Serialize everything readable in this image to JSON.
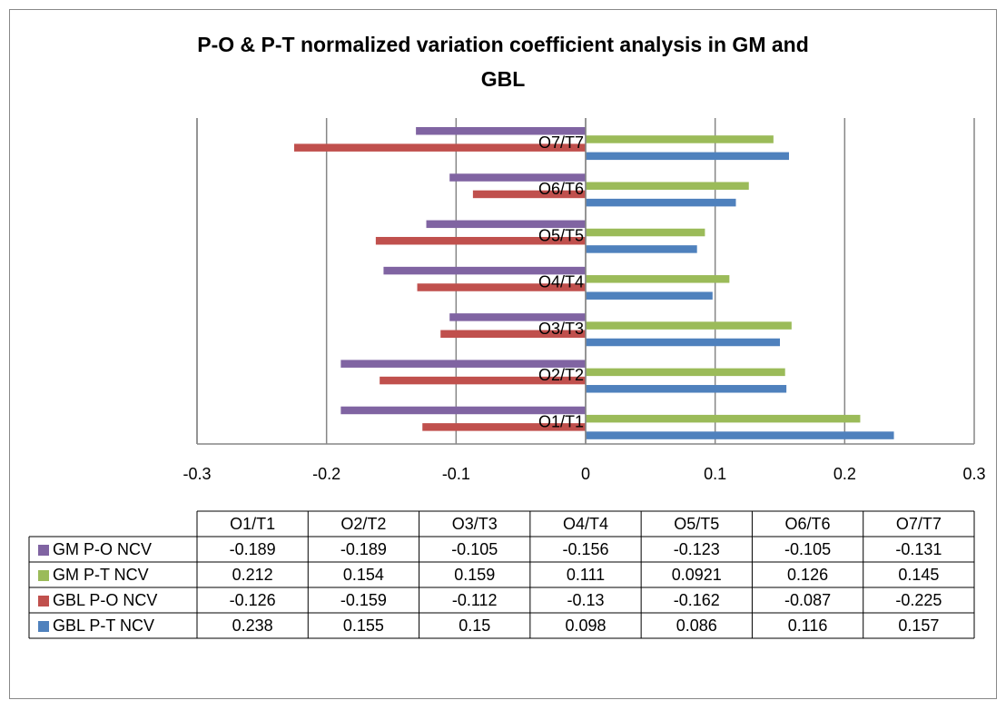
{
  "chart_data": {
    "type": "barh",
    "title": "P-O & P-T normalized variation coefficient analysis in GM and GBL",
    "categories": [
      "O1/T1",
      "O2/T2",
      "O3/T3",
      "O4/T4",
      "O5/T5",
      "O6/T6",
      "O7/T7"
    ],
    "series": [
      {
        "name": "GM P-O NCV",
        "color": "#8064a2",
        "values": [
          -0.189,
          -0.189,
          -0.105,
          -0.156,
          -0.123,
          -0.105,
          -0.131
        ]
      },
      {
        "name": "GM P-T NCV",
        "color": "#9bbb59",
        "values": [
          0.212,
          0.154,
          0.159,
          0.111,
          0.0921,
          0.126,
          0.145
        ]
      },
      {
        "name": "GBL P-O NCV",
        "color": "#c0504d",
        "values": [
          -0.126,
          -0.159,
          -0.112,
          -0.13,
          -0.162,
          -0.087,
          -0.225
        ]
      },
      {
        "name": "GBL P-T NCV",
        "color": "#4f81bd",
        "values": [
          0.238,
          0.155,
          0.15,
          0.098,
          0.086,
          0.116,
          0.157
        ]
      }
    ],
    "xlim": [
      -0.3,
      0.3
    ],
    "xticks": [
      -0.3,
      -0.2,
      -0.1,
      0,
      0.1,
      0.2,
      0.3
    ],
    "grid": true
  }
}
